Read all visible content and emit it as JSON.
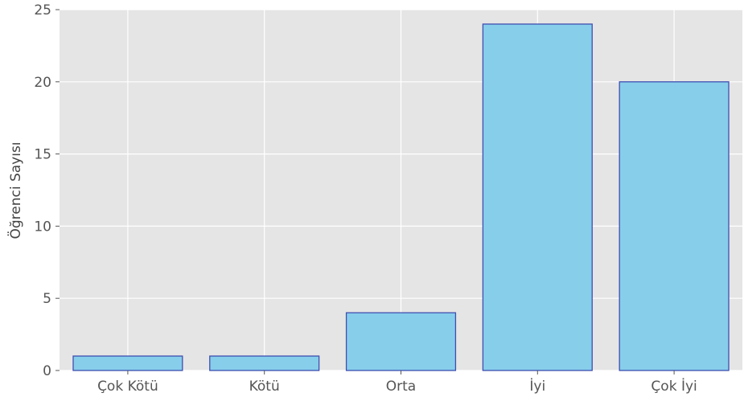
{
  "chart_data": {
    "type": "bar",
    "categories": [
      "Çok Kötü",
      "Kötü",
      "Orta",
      "İyi",
      "Çok İyi"
    ],
    "values": [
      1,
      1,
      4,
      24,
      20
    ],
    "title": "",
    "xlabel": "",
    "ylabel": "Öğrenci Sayısı",
    "ylim": [
      0,
      25
    ],
    "yticks": [
      0,
      5,
      10,
      15,
      20,
      25
    ],
    "grid": true,
    "colors": {
      "bar_fill": "#87ceeb",
      "bar_edge": "#3f4fb0",
      "background": "#e5e5e5",
      "grid": "#ffffff"
    }
  }
}
